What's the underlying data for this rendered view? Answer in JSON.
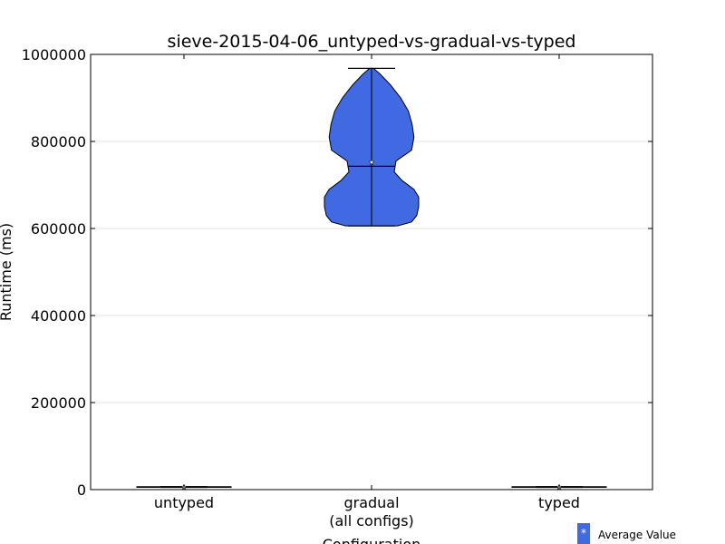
{
  "chart_data": {
    "type": "violin",
    "title": "sieve-2015-04-06_untyped-vs-gradual-vs-typed",
    "xlabel": "Configuration",
    "ylabel": "Runtime (ms)",
    "ylim": [
      0,
      1000000
    ],
    "yticks": [
      0,
      200000,
      400000,
      600000,
      800000,
      1000000
    ],
    "yticklabels": [
      "0",
      "200000",
      "400000",
      "600000",
      "800000",
      "1000000"
    ],
    "grid": "horizontal",
    "categories": [
      {
        "label": "untyped",
        "label_line2": ""
      },
      {
        "label": "gradual",
        "label_line2": "(all configs)"
      },
      {
        "label": "typed",
        "label_line2": ""
      }
    ],
    "violins": [
      {
        "category": "untyped",
        "min": 5200,
        "max": 6800,
        "median": 6000,
        "mean": 6000,
        "profile": [
          [
            5200,
            1.0
          ],
          [
            6000,
            1.0
          ],
          [
            6800,
            1.0
          ]
        ]
      },
      {
        "category": "gradual",
        "min": 606000,
        "max": 968000,
        "median": 743000,
        "mean": 752000,
        "profile": [
          [
            606000,
            0.55
          ],
          [
            615000,
            0.85
          ],
          [
            630000,
            0.96
          ],
          [
            650000,
            1.0
          ],
          [
            672000,
            1.0
          ],
          [
            690000,
            0.9
          ],
          [
            710000,
            0.65
          ],
          [
            730000,
            0.48
          ],
          [
            755000,
            0.52
          ],
          [
            780000,
            0.85
          ],
          [
            810000,
            0.9
          ],
          [
            840000,
            0.86
          ],
          [
            870000,
            0.78
          ],
          [
            900000,
            0.62
          ],
          [
            930000,
            0.4
          ],
          [
            955000,
            0.18
          ],
          [
            968000,
            0.04
          ]
        ]
      },
      {
        "category": "typed",
        "min": 5200,
        "max": 6800,
        "median": 6000,
        "mean": 6000,
        "profile": [
          [
            5200,
            1.0
          ],
          [
            6000,
            1.0
          ],
          [
            6800,
            1.0
          ]
        ]
      }
    ],
    "legend": {
      "label": "Average Value",
      "marker": "*",
      "position": "bottom-right"
    },
    "colors": {
      "fill": "#4169e1",
      "edge": "#000000",
      "grid": "#e6e6e6",
      "mean_marker": "#ffffff"
    }
  }
}
